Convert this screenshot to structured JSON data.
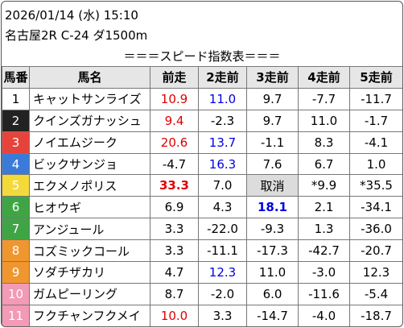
{
  "header": {
    "date": "2026/01/14 (水) 15:10",
    "race": "名古屋2R C-24 ダ1500m",
    "title": "＝＝＝スピード指数表＝＝＝"
  },
  "table": {
    "columns": [
      "馬番",
      "馬名",
      "前走",
      "2走前",
      "3走前",
      "4走前",
      "5走前"
    ],
    "rows": [
      {
        "number": "1",
        "name": "キャットサンライズ",
        "values": [
          "10.9",
          "11.0",
          "9.7",
          "-7.7",
          "-11.7"
        ],
        "frame_color": "#ffffff",
        "number_color": "#000000",
        "colors": [
          "#e00000",
          "#0000e0",
          "#000000",
          "#000000",
          "#000000"
        ]
      },
      {
        "number": "2",
        "name": "クインズガナッシュ",
        "values": [
          "9.4",
          "-2.3",
          "9.7",
          "11.0",
          "-1.7"
        ],
        "frame_color": "#222222",
        "number_color": "#ffffff",
        "colors": [
          "#e00000",
          "#000000",
          "#000000",
          "#000000",
          "#000000"
        ]
      },
      {
        "number": "3",
        "name": "ノイエムジーク",
        "values": [
          "20.6",
          "13.7",
          "-1.1",
          "8.3",
          "-4.1"
        ],
        "frame_color": "#e8433a",
        "number_color": "#ffffff",
        "colors": [
          "#e00000",
          "#0000e0",
          "#000000",
          "#000000",
          "#000000"
        ]
      },
      {
        "number": "4",
        "name": "ビックサンジョ",
        "values": [
          "-4.7",
          "16.3",
          "7.6",
          "6.7",
          "1.0"
        ],
        "frame_color": "#3b7bd8",
        "number_color": "#ffffff",
        "colors": [
          "#000000",
          "#0000e0",
          "#000000",
          "#000000",
          "#000000"
        ]
      },
      {
        "number": "5",
        "name": "エクメノポリス",
        "values": [
          "33.3",
          "7.0",
          "取消",
          "*9.9",
          "*35.5"
        ],
        "frame_color": "#f3d93a",
        "number_color": "#ffffff",
        "colors": [
          "#e00000",
          "#000000",
          "#000000",
          "#000000",
          "#000000"
        ],
        "bold": [
          0
        ],
        "shaded": [
          2
        ]
      },
      {
        "number": "6",
        "name": "ヒオウギ",
        "values": [
          "6.9",
          "4.3",
          "18.1",
          "2.1",
          "-34.1"
        ],
        "frame_color": "#3fa544",
        "number_color": "#ffffff",
        "colors": [
          "#000000",
          "#000000",
          "#0000e0",
          "#000000",
          "#000000"
        ],
        "bold": [
          2
        ]
      },
      {
        "number": "7",
        "name": "アンジュール",
        "values": [
          "3.3",
          "-22.0",
          "-9.3",
          "1.3",
          "-36.0"
        ],
        "frame_color": "#3fa544",
        "number_color": "#ffffff",
        "colors": [
          "#000000",
          "#000000",
          "#000000",
          "#000000",
          "#000000"
        ]
      },
      {
        "number": "8",
        "name": "コズミックコール",
        "values": [
          "3.3",
          "-11.1",
          "-17.3",
          "-42.7",
          "-20.7"
        ],
        "frame_color": "#f0962e",
        "number_color": "#ffffff",
        "colors": [
          "#000000",
          "#000000",
          "#000000",
          "#000000",
          "#000000"
        ]
      },
      {
        "number": "9",
        "name": "ソダチザカリ",
        "values": [
          "4.7",
          "12.3",
          "11.0",
          "-3.0",
          "12.3"
        ],
        "frame_color": "#f0962e",
        "number_color": "#ffffff",
        "colors": [
          "#000000",
          "#0000e0",
          "#000000",
          "#000000",
          "#000000"
        ]
      },
      {
        "number": "10",
        "name": "ガムピーリング",
        "values": [
          "8.7",
          "-2.0",
          "6.0",
          "-11.6",
          "-5.4"
        ],
        "frame_color": "#f29ab6",
        "number_color": "#ffffff",
        "colors": [
          "#000000",
          "#000000",
          "#000000",
          "#000000",
          "#000000"
        ]
      },
      {
        "number": "11",
        "name": "フクチャンフクメイ",
        "values": [
          "10.0",
          "3.3",
          "-14.7",
          "-4.0",
          "-18.7"
        ],
        "frame_color": "#f29ab6",
        "number_color": "#ffffff",
        "colors": [
          "#e00000",
          "#000000",
          "#000000",
          "#000000",
          "#000000"
        ]
      }
    ]
  }
}
